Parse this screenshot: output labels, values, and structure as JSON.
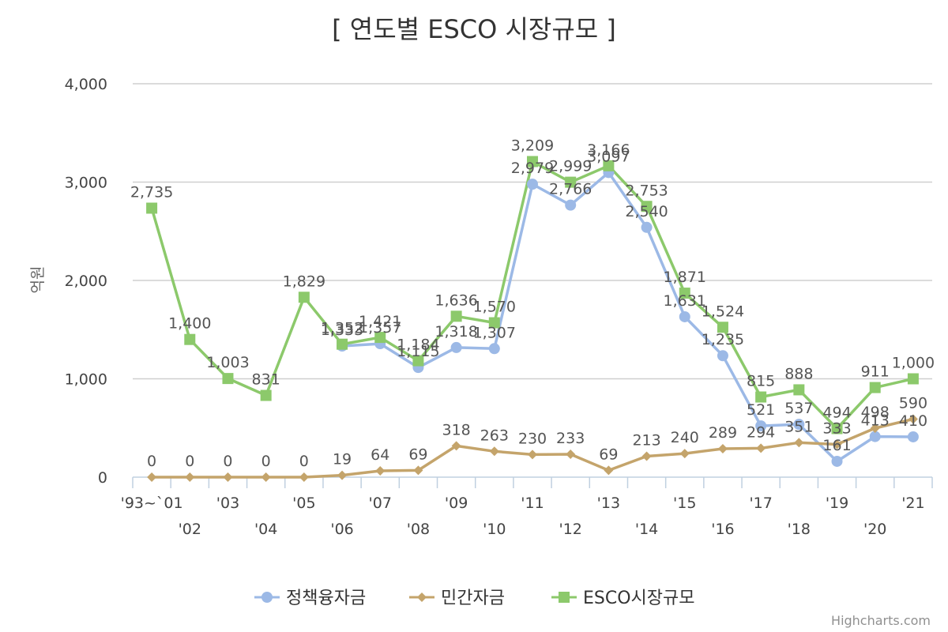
{
  "chart_data": {
    "type": "line",
    "title": "[ 연도별 ESCO 시장규모 ]",
    "ylabel": "억원",
    "xlabel": "",
    "ylim": [
      0,
      4000
    ],
    "y_ticks": [
      {
        "value": 0,
        "label": "0"
      },
      {
        "value": 1000,
        "label": "1,000"
      },
      {
        "value": 2000,
        "label": "2,000"
      },
      {
        "value": 3000,
        "label": "3,000"
      },
      {
        "value": 4000,
        "label": "4,000"
      }
    ],
    "grid": true,
    "legend_position": "bottom",
    "categories": [
      "'93~`01",
      "'02",
      "'03",
      "'04",
      "'05",
      "'06",
      "'07",
      "'08",
      "'09",
      "'10",
      "'11",
      "'12",
      "'13",
      "'14",
      "'15",
      "'16",
      "'17",
      "'18",
      "'19",
      "'20",
      "'21"
    ],
    "x_tick_labels_top": [
      "'93~`01",
      "'03",
      "'05",
      "'07",
      "'09",
      "'11",
      "'13",
      "'15",
      "'17",
      "'19",
      "'21"
    ],
    "x_tick_labels_bottom": [
      "'02",
      "'04",
      "'06",
      "'08",
      "'10",
      "'12",
      "'14",
      "'16",
      "'18",
      "'20"
    ],
    "series": [
      {
        "name": "정책융자금",
        "color": "#9cb9e6",
        "marker": "circle",
        "values": [
          null,
          null,
          null,
          null,
          null,
          1333,
          1357,
          1115,
          1318,
          1307,
          2979,
          2766,
          3097,
          2540,
          1631,
          1235,
          521,
          537,
          161,
          413,
          410
        ],
        "labels": [
          "",
          "",
          "",
          "",
          "",
          "1,333",
          "1,357",
          "1,115",
          "1,318",
          "1,307",
          "2,979",
          "2,766",
          "3,097",
          "2,540",
          "1,631",
          "1,235",
          "521",
          "537",
          "161",
          "413",
          "410"
        ]
      },
      {
        "name": "민간자금",
        "color": "#c4a46b",
        "marker": "diamond",
        "values": [
          0,
          0,
          0,
          0,
          0,
          19,
          64,
          69,
          318,
          263,
          230,
          233,
          69,
          213,
          240,
          289,
          294,
          351,
          333,
          498,
          590
        ],
        "labels": [
          "0",
          "0",
          "0",
          "0",
          "0",
          "19",
          "64",
          "69",
          "318",
          "263",
          "230",
          "233",
          "69",
          "213",
          "240",
          "289",
          "294",
          "351",
          "333",
          "498",
          "590"
        ]
      },
      {
        "name": "ESCO시장규모",
        "color": "#8cc96b",
        "marker": "square",
        "values": [
          2735,
          1400,
          1003,
          831,
          1829,
          1352,
          1421,
          1184,
          1636,
          1570,
          3209,
          2999,
          3166,
          2753,
          1871,
          1524,
          815,
          888,
          494,
          911,
          1000
        ],
        "labels": [
          "2,735",
          "1,400",
          "1,003",
          "831",
          "1,829",
          "1,352",
          "1,421",
          "1,184",
          "1,636",
          "1,570",
          "3,209",
          "2,999",
          "3,166",
          "2,753",
          "1,871",
          "1,524",
          "815",
          "888",
          "494",
          "911",
          "1,000"
        ]
      }
    ]
  },
  "credits": "Highcharts.com"
}
